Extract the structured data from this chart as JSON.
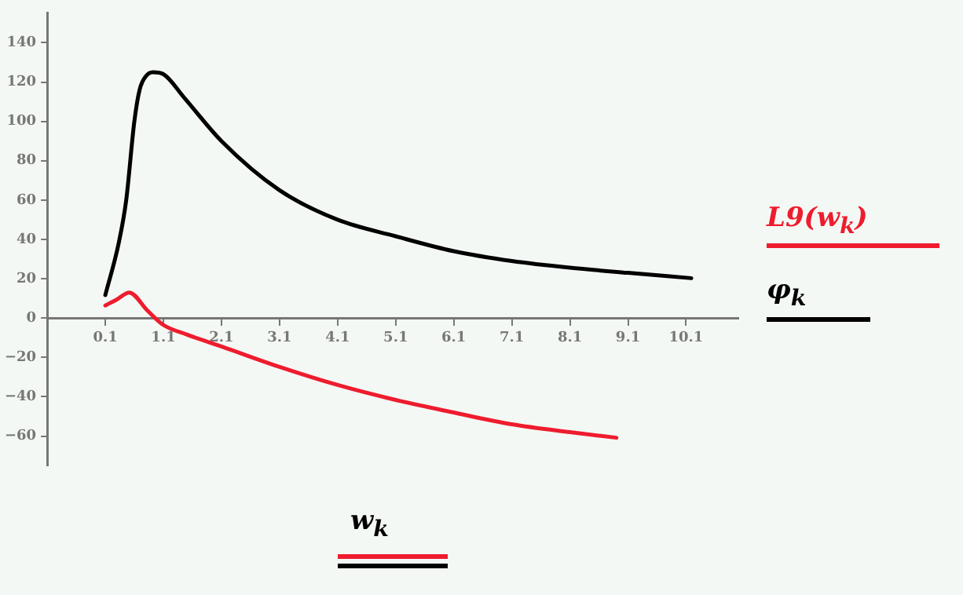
{
  "chart_data": {
    "type": "line",
    "xlabel": "w$_{k}$",
    "xlim": [
      -0.9,
      11.0
    ],
    "xticks": [
      0.1,
      1.1,
      2.1,
      3.1,
      4.1,
      5.1,
      6.1,
      7.1,
      8.1,
      9.1,
      10.1
    ],
    "ylim": [
      -75,
      155
    ],
    "yticks": [
      -60,
      -40,
      -20,
      0,
      20,
      40,
      60,
      80,
      100,
      120,
      140
    ],
    "grid": false,
    "legend": "right",
    "marker": "none",
    "line_style": "solid",
    "series": [
      {
        "name": "L9(w$_{k}$)",
        "color": "#ee1c2e",
        "x": [
          0.1,
          0.3,
          0.51,
          0.83,
          1.1,
          1.5,
          2.1,
          3.1,
          4.1,
          5.1,
          6.1,
          7.1,
          8.1,
          8.9
        ],
        "values": [
          6.4,
          9.5,
          13,
          3.7,
          -3.5,
          -8.3,
          -14.4,
          -24.8,
          -34,
          -41.6,
          -48,
          -54,
          -58,
          -60.8
        ]
      },
      {
        "name": "φ$_{k}$",
        "color": "#000000",
        "x": [
          0.1,
          0.33,
          0.46,
          0.6,
          0.69,
          0.8,
          0.92,
          1.1,
          1.46,
          2.1,
          3.1,
          4.1,
          5.1,
          6.1,
          7.1,
          8.1,
          9.1,
          10.19
        ],
        "values": [
          11.7,
          38,
          60,
          100,
          116,
          123,
          125,
          124,
          112,
          90,
          65,
          50,
          41.6,
          34,
          29,
          25.6,
          23,
          20.3
        ]
      }
    ]
  }
}
